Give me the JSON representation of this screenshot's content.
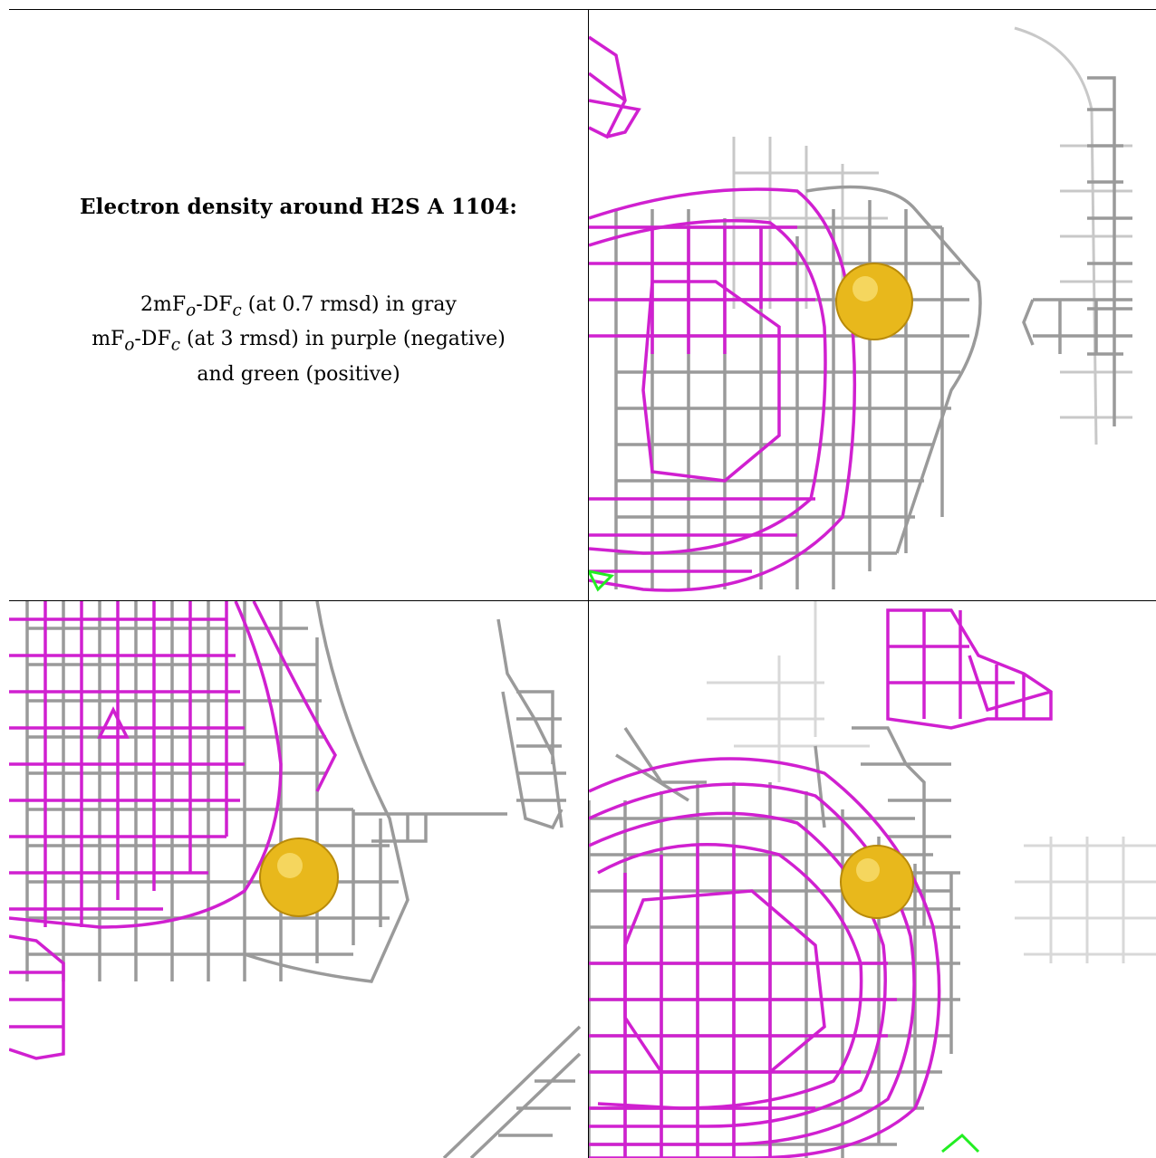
{
  "caption": {
    "title": "Electron density around H2S A 1104:",
    "line1_pre": "2mF",
    "line1_sub1": "o",
    "line1_mid": "-DF",
    "line1_sub2": "c",
    "line1_post": " (at 0.7 rmsd) in gray",
    "line2_pre": "mF",
    "line2_sub1": "o",
    "line2_mid": "-DF",
    "line2_sub2": "c",
    "line2_post": " (at 3 rmsd) in purple (negative)",
    "line3": "and green (positive)"
  },
  "colors": {
    "gray_mesh": "#9a9a9a",
    "purple_mesh": "#d020d0",
    "green_mesh": "#22ee22",
    "atom": "#e8b81c"
  }
}
